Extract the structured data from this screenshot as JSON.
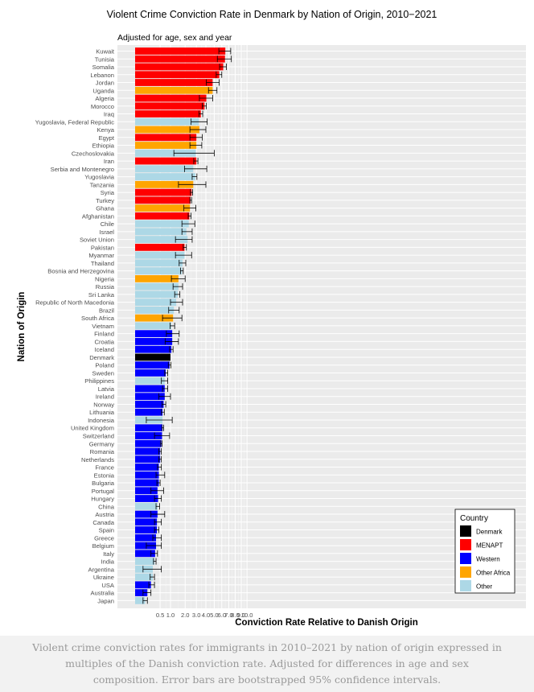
{
  "caption": "Violent crime conviction rates for immigrants in 2010–2021 by nation of origin expressed in multiples of the Danish conviction rate. Adjusted for differences in age and sex composition. Error bars are bootstrapped 95% confidence intervals.",
  "chart_data": {
    "type": "bar",
    "orientation": "horizontal",
    "title": "Violent Crime Conviction Rate in Denmark by Nation of Origin, 2010−2021",
    "subtitle": "Adjusted for age, sex and year",
    "xlabel": "Conviction Rate Relative to Danish Origin",
    "ylabel": "Nation of Origin",
    "xscale": "sqrt",
    "xlim": [
      0,
      11
    ],
    "xticks": [
      {
        "value": 0.5,
        "label": "0.5"
      },
      {
        "value": 1,
        "label": "1.0"
      },
      {
        "value": 2,
        "label": "2.0"
      },
      {
        "value": 3,
        "label": "3.0"
      },
      {
        "value": 4,
        "label": "4.0"
      },
      {
        "value": 5,
        "label": "5.0"
      },
      {
        "value": 6,
        "label": "6.0"
      },
      {
        "value": 7,
        "label": "7.0"
      },
      {
        "value": 8,
        "label": "8.0"
      },
      {
        "value": 9,
        "label": "9.0"
      },
      {
        "value": 10,
        "label": "10.0"
      }
    ],
    "grid": true,
    "legend": {
      "title": "Country",
      "position": "bottom-right",
      "entries": [
        {
          "key": "Denmark",
          "label": "Denmark",
          "color": "#000000"
        },
        {
          "key": "MENAPT",
          "label": "MENAPT",
          "color": "#ff0000"
        },
        {
          "key": "Western",
          "label": "Western",
          "color": "#0000ff"
        },
        {
          "key": "OtherAfrica",
          "label": "Other Africa",
          "color": "#ffa500"
        },
        {
          "key": "Other",
          "label": "Other",
          "color": "#add8e6"
        }
      ]
    },
    "data": [
      {
        "country": "Kuwait",
        "group": "MENAPT",
        "value": 6.5,
        "lo": 5.6,
        "hi": 7.3
      },
      {
        "country": "Tunisia",
        "group": "MENAPT",
        "value": 6.45,
        "lo": 5.4,
        "hi": 7.4
      },
      {
        "country": "Somalia",
        "group": "MENAPT",
        "value": 6.2,
        "lo": 5.7,
        "hi": 6.65
      },
      {
        "country": "Lebanon",
        "group": "MENAPT",
        "value": 5.65,
        "lo": 5.25,
        "hi": 6.0
      },
      {
        "country": "Jordan",
        "group": "MENAPT",
        "value": 4.8,
        "lo": 4.05,
        "hi": 5.65
      },
      {
        "country": "Uganda",
        "group": "OtherAfrica",
        "value": 4.8,
        "lo": 4.3,
        "hi": 5.35
      },
      {
        "country": "Algeria",
        "group": "MENAPT",
        "value": 4.05,
        "lo": 3.3,
        "hi": 4.8
      },
      {
        "country": "Morocco",
        "group": "MENAPT",
        "value": 3.85,
        "lo": 3.6,
        "hi": 4.05
      },
      {
        "country": "Iraq",
        "group": "MENAPT",
        "value": 3.45,
        "lo": 3.25,
        "hi": 3.65
      },
      {
        "country": "Yugoslavia, Federal Republic",
        "group": "Other",
        "value": 3.25,
        "lo": 2.5,
        "hi": 4.15
      },
      {
        "country": "Kenya",
        "group": "OtherAfrica",
        "value": 3.3,
        "lo": 2.4,
        "hi": 4.0
      },
      {
        "country": "Egypt",
        "group": "MENAPT",
        "value": 3.0,
        "lo": 2.4,
        "hi": 3.6
      },
      {
        "country": "Ethiopia",
        "group": "OtherAfrica",
        "value": 3.0,
        "lo": 2.4,
        "hi": 3.55
      },
      {
        "country": "Czechoslovakia",
        "group": "Other",
        "value": 2.95,
        "lo": 1.2,
        "hi": 5.0
      },
      {
        "country": "Iran",
        "group": "MENAPT",
        "value": 3.0,
        "lo": 2.75,
        "hi": 3.15
      },
      {
        "country": "Serbia and Montenegro",
        "group": "Other",
        "value": 2.7,
        "lo": 1.95,
        "hi": 4.1
      },
      {
        "country": "Yugoslavia",
        "group": "Other",
        "value": 2.9,
        "lo": 2.6,
        "hi": 3.05
      },
      {
        "country": "Tanzania",
        "group": "OtherAfrica",
        "value": 2.7,
        "lo": 1.5,
        "hi": 4.0
      },
      {
        "country": "Syria",
        "group": "MENAPT",
        "value": 2.55,
        "lo": 2.45,
        "hi": 2.65
      },
      {
        "country": "Turkey",
        "group": "MENAPT",
        "value": 2.45,
        "lo": 2.4,
        "hi": 2.55
      },
      {
        "country": "Ghana",
        "group": "OtherAfrica",
        "value": 2.4,
        "lo": 1.9,
        "hi": 2.95
      },
      {
        "country": "Afghanistan",
        "group": "MENAPT",
        "value": 2.35,
        "lo": 2.25,
        "hi": 2.5
      },
      {
        "country": "Chile",
        "group": "Other",
        "value": 2.3,
        "lo": 1.75,
        "hi": 2.85
      },
      {
        "country": "Israel",
        "group": "Other",
        "value": 2.1,
        "lo": 1.75,
        "hi": 2.6
      },
      {
        "country": "Soviet Union",
        "group": "Other",
        "value": 2.2,
        "lo": 1.3,
        "hi": 2.6
      },
      {
        "country": "Pakistan",
        "group": "MENAPT",
        "value": 1.95,
        "lo": 1.85,
        "hi": 2.1
      },
      {
        "country": "Myanmar",
        "group": "Other",
        "value": 1.95,
        "lo": 1.3,
        "hi": 2.55
      },
      {
        "country": "Thailand",
        "group": "Other",
        "value": 1.8,
        "lo": 1.55,
        "hi": 2.05
      },
      {
        "country": "Bosnia and Herzegovina",
        "group": "Other",
        "value": 1.75,
        "lo": 1.65,
        "hi": 1.85
      },
      {
        "country": "Nigeria",
        "group": "OtherAfrica",
        "value": 1.5,
        "lo": 1.05,
        "hi": 2.0
      },
      {
        "country": "Russia",
        "group": "Other",
        "value": 1.5,
        "lo": 1.15,
        "hi": 1.8
      },
      {
        "country": "Sri Lanka",
        "group": "Other",
        "value": 1.45,
        "lo": 1.25,
        "hi": 1.6
      },
      {
        "country": "Republic of North Macedonia",
        "group": "Other",
        "value": 1.35,
        "lo": 1.0,
        "hi": 1.8
      },
      {
        "country": "Brazil",
        "group": "Other",
        "value": 1.2,
        "lo": 0.9,
        "hi": 1.55
      },
      {
        "country": "South Africa",
        "group": "OtherAfrica",
        "value": 1.15,
        "lo": 0.6,
        "hi": 1.75
      },
      {
        "country": "Vietnam",
        "group": "Other",
        "value": 1.05,
        "lo": 0.98,
        "hi": 1.25
      },
      {
        "country": "Finland",
        "group": "Western",
        "value": 1.1,
        "lo": 0.78,
        "hi": 1.55
      },
      {
        "country": "Croatia",
        "group": "Western",
        "value": 1.1,
        "lo": 0.72,
        "hi": 1.5
      },
      {
        "country": "Iceland",
        "group": "Western",
        "value": 1.05,
        "lo": 0.95,
        "hi": 1.15
      },
      {
        "country": "Denmark",
        "group": "Denmark",
        "value": 1.0,
        "lo": 1.0,
        "hi": 1.0
      },
      {
        "country": "Poland",
        "group": "Western",
        "value": 0.95,
        "lo": 0.88,
        "hi": 1.02
      },
      {
        "country": "Sweden",
        "group": "Western",
        "value": 0.75,
        "lo": 0.7,
        "hi": 0.85
      },
      {
        "country": "Philippines",
        "group": "Other",
        "value": 0.7,
        "lo": 0.55,
        "hi": 0.85
      },
      {
        "country": "Latvia",
        "group": "Western",
        "value": 0.7,
        "lo": 0.6,
        "hi": 0.85
      },
      {
        "country": "Ireland",
        "group": "Western",
        "value": 0.7,
        "lo": 0.45,
        "hi": 1.0
      },
      {
        "country": "Norway",
        "group": "Western",
        "value": 0.65,
        "lo": 0.58,
        "hi": 0.75
      },
      {
        "country": "Lithuania",
        "group": "Western",
        "value": 0.6,
        "lo": 0.55,
        "hi": 0.68
      },
      {
        "country": "Indonesia",
        "group": "Other",
        "value": 0.6,
        "lo": 0.1,
        "hi": 1.1
      },
      {
        "country": "United Kingdom",
        "group": "Western",
        "value": 0.6,
        "lo": 0.57,
        "hi": 0.65
      },
      {
        "country": "Switzerland",
        "group": "Western",
        "value": 0.58,
        "lo": 0.3,
        "hi": 0.95
      },
      {
        "country": "Germany",
        "group": "Western",
        "value": 0.55,
        "lo": 0.52,
        "hi": 0.58
      },
      {
        "country": "Romania",
        "group": "Western",
        "value": 0.5,
        "lo": 0.45,
        "hi": 0.55
      },
      {
        "country": "Netherlands",
        "group": "Western",
        "value": 0.5,
        "lo": 0.45,
        "hi": 0.55
      },
      {
        "country": "France",
        "group": "Western",
        "value": 0.45,
        "lo": 0.4,
        "hi": 0.55
      },
      {
        "country": "Estonia",
        "group": "Western",
        "value": 0.45,
        "lo": 0.35,
        "hi": 0.7
      },
      {
        "country": "Bulgaria",
        "group": "Western",
        "value": 0.45,
        "lo": 0.38,
        "hi": 0.5
      },
      {
        "country": "Portugal",
        "group": "Western",
        "value": 0.4,
        "lo": 0.2,
        "hi": 0.65
      },
      {
        "country": "Hungary",
        "group": "Western",
        "value": 0.42,
        "lo": 0.3,
        "hi": 0.55
      },
      {
        "country": "China",
        "group": "Other",
        "value": 0.4,
        "lo": 0.35,
        "hi": 0.48
      },
      {
        "country": "Austria",
        "group": "Western",
        "value": 0.4,
        "lo": 0.2,
        "hi": 0.7
      },
      {
        "country": "Canada",
        "group": "Western",
        "value": 0.38,
        "lo": 0.3,
        "hi": 0.55
      },
      {
        "country": "Spain",
        "group": "Western",
        "value": 0.38,
        "lo": 0.3,
        "hi": 0.45
      },
      {
        "country": "Greece",
        "group": "Western",
        "value": 0.35,
        "lo": 0.25,
        "hi": 0.55
      },
      {
        "country": "Belgium",
        "group": "Western",
        "value": 0.35,
        "lo": 0.1,
        "hi": 0.55
      },
      {
        "country": "Italy",
        "group": "Western",
        "value": 0.32,
        "lo": 0.2,
        "hi": 0.4
      },
      {
        "country": "India",
        "group": "Other",
        "value": 0.3,
        "lo": 0.27,
        "hi": 0.35
      },
      {
        "country": "Argentina",
        "group": "Other",
        "value": 0.25,
        "lo": 0.05,
        "hi": 0.55
      },
      {
        "country": "Ukraine",
        "group": "Other",
        "value": 0.25,
        "lo": 0.18,
        "hi": 0.3
      },
      {
        "country": "USA",
        "group": "Western",
        "value": 0.2,
        "lo": 0.15,
        "hi": 0.3
      },
      {
        "country": "Australia",
        "group": "Western",
        "value": 0.12,
        "lo": 0.05,
        "hi": 0.2
      },
      {
        "country": "Japan",
        "group": "Other",
        "value": 0.08,
        "lo": 0.05,
        "hi": 0.12
      }
    ]
  }
}
